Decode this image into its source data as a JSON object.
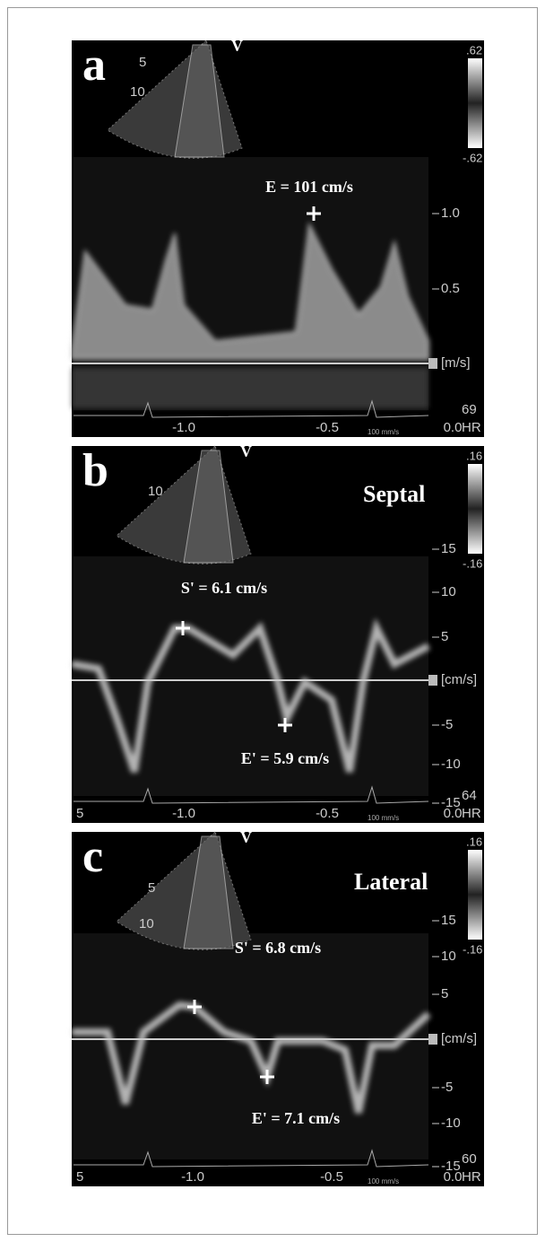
{
  "panels": [
    {
      "letter": "a",
      "depth_labels": [
        "5",
        "10"
      ],
      "probe_mark": "V",
      "colorbar": [
        ".62",
        "-.62"
      ],
      "annotations": [
        "E = 101 cm/s"
      ],
      "scale": [
        "1.0",
        "0.5"
      ],
      "unit": "[m/s]",
      "heart_rate": "69",
      "hr_label": "HR",
      "time_labels": [
        "-1.0",
        "-0.5",
        "0.0"
      ],
      "sweep_speed": "100 mm/s"
    },
    {
      "letter": "b",
      "title": "Septal",
      "depth_labels": [
        "10"
      ],
      "probe_mark": "V",
      "colorbar": [
        ".16",
        "-.16"
      ],
      "annotations": [
        "S' = 6.1 cm/s",
        "E' = 5.9 cm/s"
      ],
      "scale": [
        "15",
        "10",
        "5",
        "-5",
        "-10",
        "-15"
      ],
      "unit": "[cm/s]",
      "heart_rate": "64",
      "hr_label": "HR",
      "time_labels": [
        "5",
        "-1.0",
        "-0.5",
        "0.0"
      ],
      "sweep_speed": "100 mm/s"
    },
    {
      "letter": "c",
      "title": "Lateral",
      "depth_labels": [
        "5",
        "10"
      ],
      "probe_mark": "V",
      "colorbar": [
        ".16",
        "-.16"
      ],
      "annotations": [
        "S' = 6.8 cm/s",
        "E' = 7.1 cm/s"
      ],
      "scale": [
        "15",
        "10",
        "5",
        "-5",
        "-10",
        "-15"
      ],
      "unit": "[cm/s]",
      "heart_rate": "60",
      "hr_label": "HR",
      "time_labels": [
        "5",
        "-1.0",
        "-0.5",
        "0.0"
      ],
      "sweep_speed": "100 mm/s"
    }
  ]
}
